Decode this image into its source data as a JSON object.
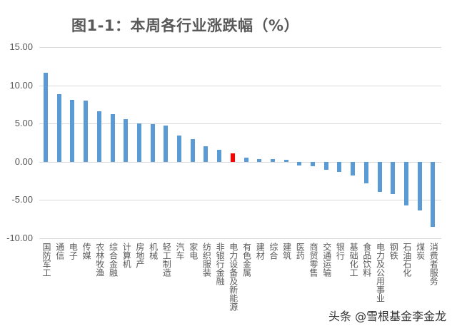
{
  "title": "图1-1：本周各行业涨跌幅（%）",
  "watermark": "头条 @雪根基金李金龙",
  "colors": {
    "bar": "#5b9bd5",
    "highlight": "#ff0000",
    "grid": "#d9d9d9",
    "text": "#595959"
  },
  "chart_data": {
    "type": "bar",
    "title": "图1-1：本周各行业涨跌幅（%）",
    "xlabel": "",
    "ylabel": "",
    "ylim": [
      -10,
      15
    ],
    "yticks": [
      "15.00",
      "10.00",
      "5.00",
      "0.00",
      "-5.00",
      "-10.00"
    ],
    "grid": true,
    "legend": null,
    "highlight_category": "电力设备及新能源",
    "categories": [
      "国防军工",
      "通信",
      "电子",
      "传媒",
      "农林牧渔",
      "综合金融",
      "计算机",
      "房地产",
      "机械",
      "轻工制造",
      "汽车",
      "家电",
      "纺织服装",
      "非银行金融",
      "电力设备及新能源",
      "有色金属",
      "建材",
      "综合",
      "建筑",
      "医药",
      "商贸零售",
      "交通运输",
      "银行",
      "基础化工",
      "食品饮料",
      "电力及公用事业",
      "钢铁",
      "石油石化",
      "煤炭",
      "消费者服务"
    ],
    "values": [
      11.6,
      8.8,
      8.1,
      8.0,
      6.6,
      6.2,
      5.6,
      5.0,
      4.9,
      4.7,
      3.4,
      3.0,
      2.0,
      1.6,
      1.1,
      0.5,
      0.4,
      0.4,
      0.3,
      -0.5,
      -0.6,
      -1.0,
      -1.3,
      -1.8,
      -2.8,
      -3.9,
      -4.2,
      -5.7,
      -6.4,
      -8.5
    ]
  }
}
